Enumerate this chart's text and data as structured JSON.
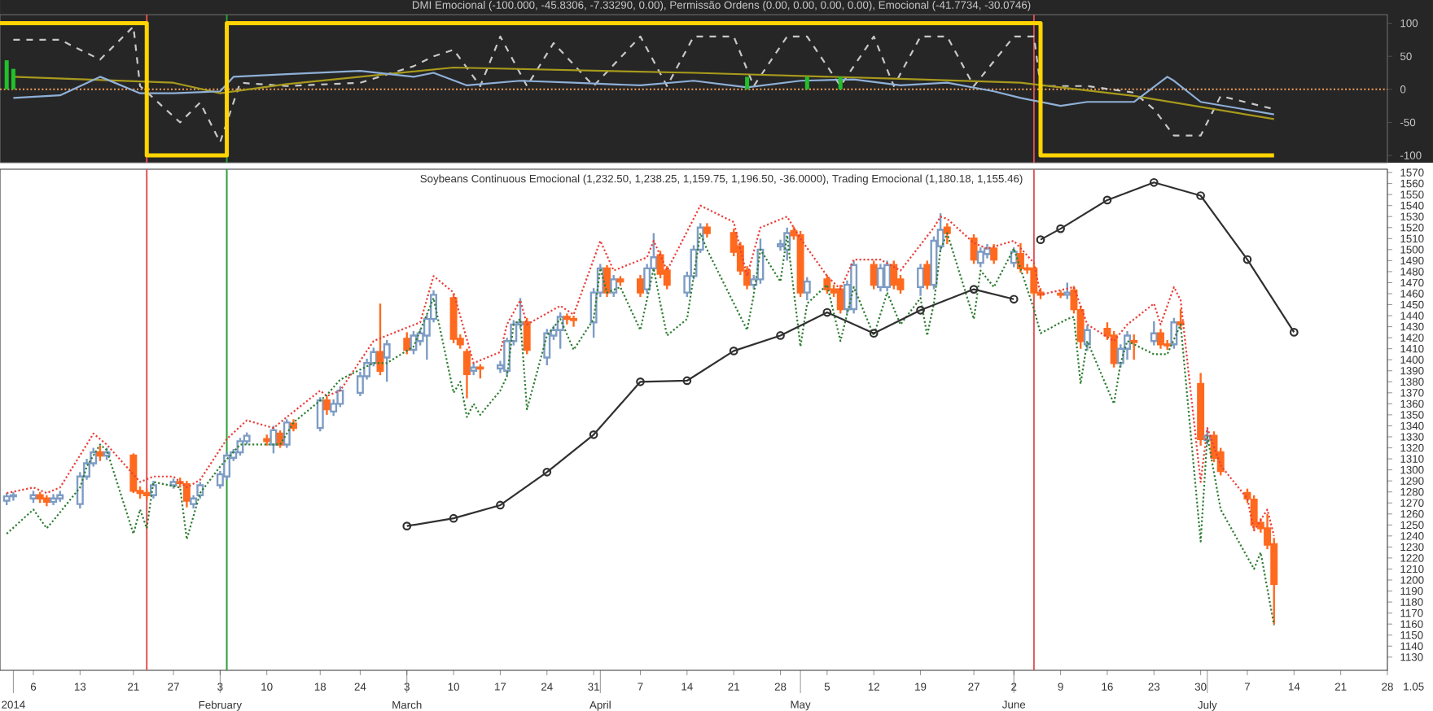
{
  "chart_data": [
    {
      "type": "line",
      "title": "DMI Emocional (-100.000, -45.8306, -7.33290, 0.00), Permissão Ordens (0.00, 0.00, 0.00, 0.00), Emocional (-41.7734, -30.0746)",
      "xlim": [
        "2014-01-01",
        "2014-07-28"
      ],
      "ylim": [
        -111,
        113
      ],
      "yticks": [
        -100,
        -50,
        0,
        50,
        100
      ],
      "tick_labels": "y",
      "series": [
        {
          "type": "line",
          "color": "#c8c8c8",
          "line_style": "dashed",
          "x": [
            "2014-01-03",
            "2014-01-10",
            "2014-01-16",
            "2014-01-21",
            "2014-01-22",
            "2014-01-28",
            "2014-01-31",
            "2014-02-03",
            "2014-02-06",
            "2014-02-13",
            "2014-02-24",
            "2014-03-04",
            "2014-03-07",
            "2014-03-10",
            "2014-03-14",
            "2014-03-17",
            "2014-03-21",
            "2014-03-25",
            "2014-03-31",
            "2014-04-07",
            "2014-04-11",
            "2014-04-15",
            "2014-04-21",
            "2014-04-24",
            "2014-04-29",
            "2014-05-02",
            "2014-05-07",
            "2014-05-12",
            "2014-05-15",
            "2014-05-19",
            "2014-05-23",
            "2014-05-27",
            "2014-06-02",
            "2014-06-05",
            "2014-06-06",
            "2014-06-13",
            "2014-06-20",
            "2014-06-23",
            "2014-06-26",
            "2014-06-30",
            "2014-07-03",
            "2014-07-11"
          ],
          "values": [
            75,
            75,
            45,
            95,
            5,
            -50,
            -20,
            -80,
            10,
            5,
            10,
            35,
            50,
            60,
            5,
            80,
            5,
            70,
            5,
            80,
            5,
            80,
            80,
            5,
            80,
            80,
            5,
            80,
            5,
            80,
            80,
            5,
            80,
            80,
            5,
            5,
            -5,
            -30,
            -70,
            -70,
            -10,
            -30
          ]
        },
        {
          "type": "line",
          "color": "#a89a1c",
          "x": [
            "2014-01-03",
            "2014-01-27",
            "2014-02-03",
            "2014-02-13",
            "2014-03-10",
            "2014-04-15",
            "2014-05-16",
            "2014-06-03",
            "2014-06-20",
            "2014-07-11"
          ],
          "values": [
            19,
            10,
            -6,
            8,
            33,
            25,
            16,
            10,
            -10,
            -45
          ]
        },
        {
          "type": "line",
          "color": "#8fb0d8",
          "x": [
            "2014-01-03",
            "2014-01-10",
            "2014-01-16",
            "2014-01-17",
            "2014-01-22",
            "2014-01-27",
            "2014-02-03",
            "2014-02-05",
            "2014-02-13",
            "2014-02-24",
            "2014-03-04",
            "2014-03-07",
            "2014-03-12",
            "2014-03-20",
            "2014-03-28",
            "2014-04-07",
            "2014-04-15",
            "2014-04-23",
            "2014-05-01",
            "2014-05-09",
            "2014-05-16",
            "2014-05-23",
            "2014-05-30",
            "2014-06-03",
            "2014-06-09",
            "2014-06-13",
            "2014-06-20",
            "2014-06-25",
            "2014-06-26",
            "2014-06-30",
            "2014-07-07",
            "2014-07-11"
          ],
          "values": [
            -13,
            -9,
            19,
            15,
            -6,
            -6,
            -3,
            19,
            23,
            28,
            19,
            25,
            6,
            13,
            10,
            6,
            13,
            3,
            13,
            15,
            6,
            10,
            -3,
            -13,
            -25,
            -19,
            -19,
            19,
            13,
            -19,
            -31,
            -38
          ]
        },
        {
          "type": "step",
          "color": "#ffd400",
          "x": [
            "2014-01-01",
            "2014-01-23",
            "2014-02-04",
            "2014-06-06",
            "2014-07-11"
          ],
          "values": [
            100,
            -100,
            100,
            -100,
            -100
          ]
        },
        {
          "type": "bar",
          "color": "#22c02a",
          "x": [
            "2014-01-02",
            "2014-01-03",
            "2014-04-23",
            "2014-05-02",
            "2014-05-07"
          ],
          "values": [
            44,
            31,
            19,
            19,
            19
          ]
        }
      ],
      "ref_lines": [
        {
          "axis": "y",
          "value": 0,
          "color": "#f5a05a",
          "line_style": "dotted"
        },
        {
          "axis": "x",
          "value": "2014-01-23",
          "color": "#e05050"
        },
        {
          "axis": "x",
          "value": "2014-02-04",
          "color": "#2e9e3e"
        },
        {
          "axis": "x",
          "value": "2014-06-05",
          "color": "#e05050"
        }
      ]
    },
    {
      "type": "candlestick",
      "title": "Soybeans Continuous Emocional (1,232.50, 1,238.25, 1,159.75, 1,196.50, -36.0000), Trading Emocional (1,180.18, 1,155.46)",
      "xlim": [
        "2014-01-01",
        "2014-07-28"
      ],
      "ylim": [
        1118,
        1573
      ],
      "yticks": [
        1130,
        1140,
        1150,
        1160,
        1170,
        1180,
        1190,
        1200,
        1210,
        1220,
        1230,
        1240,
        1250,
        1260,
        1270,
        1280,
        1290,
        1300,
        1310,
        1320,
        1330,
        1340,
        1350,
        1360,
        1370,
        1380,
        1390,
        1400,
        1410,
        1420,
        1430,
        1440,
        1450,
        1460,
        1470,
        1480,
        1490,
        1500,
        1510,
        1520,
        1530,
        1540,
        1550,
        1560,
        1570
      ],
      "xticks": [
        {
          "value": "2014-01-06",
          "label": "6"
        },
        {
          "value": "2014-01-13",
          "label": "13"
        },
        {
          "value": "2014-01-21",
          "label": "21"
        },
        {
          "value": "2014-01-27",
          "label": "27"
        },
        {
          "value": "2014-02-03",
          "label": "3"
        },
        {
          "value": "2014-02-10",
          "label": "10"
        },
        {
          "value": "2014-02-18",
          "label": "18"
        },
        {
          "value": "2014-02-24",
          "label": "24"
        },
        {
          "value": "2014-03-03",
          "label": "3"
        },
        {
          "value": "2014-03-10",
          "label": "10"
        },
        {
          "value": "2014-03-17",
          "label": "17"
        },
        {
          "value": "2014-03-24",
          "label": "24"
        },
        {
          "value": "2014-03-31",
          "label": "31"
        },
        {
          "value": "2014-04-07",
          "label": "7"
        },
        {
          "value": "2014-04-14",
          "label": "14"
        },
        {
          "value": "2014-04-21",
          "label": "21"
        },
        {
          "value": "2014-04-28",
          "label": "28"
        },
        {
          "value": "2014-05-05",
          "label": "5"
        },
        {
          "value": "2014-05-12",
          "label": "12"
        },
        {
          "value": "2014-05-19",
          "label": "19"
        },
        {
          "value": "2014-05-27",
          "label": "27"
        },
        {
          "value": "2014-06-02",
          "label": "2"
        },
        {
          "value": "2014-06-09",
          "label": "9"
        },
        {
          "value": "2014-06-16",
          "label": "16"
        },
        {
          "value": "2014-06-23",
          "label": "23"
        },
        {
          "value": "2014-06-30",
          "label": "30"
        },
        {
          "value": "2014-07-07",
          "label": "7"
        },
        {
          "value": "2014-07-14",
          "label": "14"
        },
        {
          "value": "2014-07-21",
          "label": "21"
        },
        {
          "value": "2014-07-28",
          "label": "28"
        }
      ],
      "x": [
        "2014-01-02",
        "2014-01-03",
        "2014-01-06",
        "2014-01-07",
        "2014-01-08",
        "2014-01-09",
        "2014-01-10",
        "2014-01-13",
        "2014-01-14",
        "2014-01-15",
        "2014-01-16",
        "2014-01-17",
        "2014-01-21",
        "2014-01-22",
        "2014-01-23",
        "2014-01-24",
        "2014-01-27",
        "2014-01-28",
        "2014-01-29",
        "2014-01-30",
        "2014-01-31",
        "2014-02-03",
        "2014-02-04",
        "2014-02-05",
        "2014-02-06",
        "2014-02-07",
        "2014-02-10",
        "2014-02-11",
        "2014-02-12",
        "2014-02-13",
        "2014-02-14",
        "2014-02-18",
        "2014-02-19",
        "2014-02-20",
        "2014-02-21",
        "2014-02-24",
        "2014-02-25",
        "2014-02-26",
        "2014-02-27",
        "2014-02-28",
        "2014-03-03",
        "2014-03-04",
        "2014-03-05",
        "2014-03-06",
        "2014-03-07",
        "2014-03-10",
        "2014-03-11",
        "2014-03-12",
        "2014-03-13",
        "2014-03-14",
        "2014-03-17",
        "2014-03-18",
        "2014-03-19",
        "2014-03-20",
        "2014-03-21",
        "2014-03-24",
        "2014-03-25",
        "2014-03-26",
        "2014-03-27",
        "2014-03-28",
        "2014-03-31",
        "2014-04-01",
        "2014-04-02",
        "2014-04-03",
        "2014-04-04",
        "2014-04-07",
        "2014-04-08",
        "2014-04-09",
        "2014-04-10",
        "2014-04-11",
        "2014-04-14",
        "2014-04-15",
        "2014-04-16",
        "2014-04-17",
        "2014-04-21",
        "2014-04-22",
        "2014-04-23",
        "2014-04-24",
        "2014-04-25",
        "2014-04-28",
        "2014-04-29",
        "2014-04-30",
        "2014-05-01",
        "2014-05-02",
        "2014-05-05",
        "2014-05-06",
        "2014-05-07",
        "2014-05-08",
        "2014-05-09",
        "2014-05-12",
        "2014-05-13",
        "2014-05-14",
        "2014-05-15",
        "2014-05-16",
        "2014-05-19",
        "2014-05-20",
        "2014-05-21",
        "2014-05-22",
        "2014-05-23",
        "2014-05-27",
        "2014-05-28",
        "2014-05-29",
        "2014-05-30",
        "2014-06-02",
        "2014-06-03",
        "2014-06-04",
        "2014-06-05",
        "2014-06-06",
        "2014-06-09",
        "2014-06-10",
        "2014-06-11",
        "2014-06-12",
        "2014-06-13",
        "2014-06-16",
        "2014-06-17",
        "2014-06-18",
        "2014-06-19",
        "2014-06-20",
        "2014-06-23",
        "2014-06-24",
        "2014-06-25",
        "2014-06-26",
        "2014-06-27",
        "2014-06-30",
        "2014-07-01",
        "2014-07-02",
        "2014-07-03",
        "2014-07-07",
        "2014-07-08",
        "2014-07-09",
        "2014-07-10",
        "2014-07-11"
      ],
      "ohlc": [
        [
          1272,
          1279,
          1268,
          1276
        ],
        [
          1276,
          1280,
          1272,
          1277
        ],
        [
          1274,
          1281,
          1270,
          1277
        ],
        [
          1277,
          1280,
          1270,
          1274
        ],
        [
          1274,
          1277,
          1267,
          1271
        ],
        [
          1271,
          1278,
          1268,
          1274
        ],
        [
          1274,
          1281,
          1271,
          1277
        ],
        [
          1269,
          1298,
          1265,
          1294
        ],
        [
          1294,
          1310,
          1291,
          1306
        ],
        [
          1306,
          1320,
          1303,
          1316
        ],
        [
          1316,
          1322,
          1308,
          1313
        ],
        [
          1313,
          1320,
          1309,
          1316
        ],
        [
          1313,
          1315,
          1279,
          1281
        ],
        [
          1281,
          1285,
          1274,
          1279
        ],
        [
          1279,
          1283,
          1273,
          1277
        ],
        [
          1277,
          1290,
          1274,
          1286
        ],
        [
          1286,
          1292,
          1283,
          1289
        ],
        [
          1289,
          1293,
          1284,
          1288
        ],
        [
          1287,
          1290,
          1266,
          1272
        ],
        [
          1269,
          1277,
          1265,
          1274
        ],
        [
          1277,
          1289,
          1274,
          1286
        ],
        [
          1286,
          1299,
          1283,
          1296
        ],
        [
          1294,
          1316,
          1291,
          1313
        ],
        [
          1311,
          1319,
          1308,
          1316
        ],
        [
          1316,
          1329,
          1313,
          1326
        ],
        [
          1326,
          1334,
          1323,
          1331
        ],
        [
          1328,
          1332,
          1322,
          1326
        ],
        [
          1323,
          1340,
          1315,
          1336
        ],
        [
          1333,
          1336,
          1320,
          1323
        ],
        [
          1323,
          1346,
          1320,
          1343
        ],
        [
          1342,
          1346,
          1335,
          1338
        ],
        [
          1338,
          1366,
          1335,
          1363
        ],
        [
          1363,
          1367,
          1350,
          1355
        ],
        [
          1353,
          1364,
          1349,
          1360
        ],
        [
          1360,
          1376,
          1357,
          1372
        ],
        [
          1370,
          1389,
          1367,
          1385
        ],
        [
          1385,
          1401,
          1382,
          1397
        ],
        [
          1397,
          1411,
          1394,
          1407
        ],
        [
          1407,
          1451,
          1386,
          1390
        ],
        [
          1402,
          1418,
          1380,
          1414
        ],
        [
          1419,
          1425,
          1405,
          1409
        ],
        [
          1409,
          1426,
          1405,
          1422
        ],
        [
          1417,
          1428,
          1413,
          1424
        ],
        [
          1422,
          1441,
          1400,
          1437
        ],
        [
          1437,
          1463,
          1434,
          1459
        ],
        [
          1456,
          1460,
          1415,
          1419
        ],
        [
          1419,
          1423,
          1410,
          1414
        ],
        [
          1407,
          1410,
          1365,
          1387
        ],
        [
          1390,
          1397,
          1386,
          1393
        ],
        [
          1393,
          1396,
          1383,
          1392
        ],
        [
          1392,
          1399,
          1388,
          1395
        ],
        [
          1390,
          1420,
          1386,
          1417
        ],
        [
          1417,
          1436,
          1413,
          1432
        ],
        [
          1432,
          1456,
          1428,
          1434
        ],
        [
          1434,
          1438,
          1405,
          1409
        ],
        [
          1402,
          1428,
          1395,
          1424
        ],
        [
          1422,
          1431,
          1418,
          1427
        ],
        [
          1427,
          1443,
          1410,
          1439
        ],
        [
          1439,
          1442,
          1432,
          1437
        ],
        [
          1437,
          1440,
          1430,
          1436
        ],
        [
          1434,
          1465,
          1420,
          1461
        ],
        [
          1461,
          1487,
          1457,
          1483
        ],
        [
          1483,
          1486,
          1457,
          1461
        ],
        [
          1461,
          1477,
          1457,
          1473
        ],
        [
          1473,
          1476,
          1467,
          1471
        ],
        [
          1473,
          1477,
          1457,
          1461
        ],
        [
          1464,
          1487,
          1460,
          1483
        ],
        [
          1483,
          1515,
          1480,
          1493
        ],
        [
          1495,
          1499,
          1474,
          1478
        ],
        [
          1481,
          1485,
          1464,
          1468
        ],
        [
          1461,
          1480,
          1457,
          1476
        ],
        [
          1476,
          1504,
          1473,
          1500
        ],
        [
          1500,
          1524,
          1497,
          1520
        ],
        [
          1520,
          1524,
          1511,
          1515
        ],
        [
          1515,
          1519,
          1494,
          1498
        ],
        [
          1503,
          1507,
          1477,
          1481
        ],
        [
          1481,
          1485,
          1464,
          1468
        ],
        [
          1468,
          1477,
          1464,
          1473
        ],
        [
          1473,
          1510,
          1469,
          1500
        ],
        [
          1503,
          1509,
          1499,
          1505
        ],
        [
          1500,
          1520,
          1490,
          1515
        ],
        [
          1517,
          1521,
          1509,
          1513
        ],
        [
          1513,
          1517,
          1457,
          1461
        ],
        [
          1461,
          1475,
          1454,
          1471
        ],
        [
          1473,
          1477,
          1460,
          1464
        ],
        [
          1464,
          1468,
          1457,
          1461
        ],
        [
          1464,
          1468,
          1442,
          1446
        ],
        [
          1446,
          1472,
          1442,
          1468
        ],
        [
          1446,
          1490,
          1442,
          1486
        ],
        [
          1486,
          1490,
          1464,
          1468
        ],
        [
          1466,
          1487,
          1462,
          1483
        ],
        [
          1466,
          1490,
          1462,
          1486
        ],
        [
          1486,
          1490,
          1464,
          1468
        ],
        [
          1473,
          1477,
          1460,
          1464
        ],
        [
          1466,
          1487,
          1458,
          1483
        ],
        [
          1486,
          1490,
          1464,
          1468
        ],
        [
          1468,
          1512,
          1464,
          1508
        ],
        [
          1503,
          1533,
          1499,
          1518
        ],
        [
          1520,
          1524,
          1505,
          1515
        ],
        [
          1510,
          1514,
          1487,
          1491
        ],
        [
          1488,
          1502,
          1484,
          1498
        ],
        [
          1496,
          1505,
          1492,
          1501
        ],
        [
          1501,
          1505,
          1487,
          1491
        ],
        [
          1488,
          1502,
          1484,
          1498
        ],
        [
          1496,
          1506,
          1479,
          1483
        ],
        [
          1483,
          1487,
          1478,
          1482
        ],
        [
          1483,
          1487,
          1457,
          1461
        ],
        [
          1461,
          1465,
          1455,
          1459
        ],
        [
          1460,
          1463,
          1456,
          1459
        ],
        [
          1459,
          1470,
          1455,
          1461
        ],
        [
          1463,
          1467,
          1442,
          1446
        ],
        [
          1445,
          1449,
          1410,
          1417
        ],
        [
          1414,
          1431,
          1408,
          1427
        ],
        [
          1428,
          1434,
          1418,
          1422
        ],
        [
          1422,
          1426,
          1393,
          1397
        ],
        [
          1397,
          1414,
          1393,
          1410
        ],
        [
          1410,
          1426,
          1400,
          1422
        ],
        [
          1417,
          1423,
          1400,
          1416
        ],
        [
          1417,
          1435,
          1413,
          1424
        ],
        [
          1424,
          1428,
          1410,
          1414
        ],
        [
          1414,
          1418,
          1409,
          1413
        ],
        [
          1414,
          1438,
          1410,
          1434
        ],
        [
          1434,
          1446,
          1428,
          1432
        ],
        [
          1378,
          1388,
          1322,
          1328
        ],
        [
          1327,
          1337,
          1323,
          1331
        ],
        [
          1331,
          1335,
          1307,
          1311
        ],
        [
          1316,
          1320,
          1295,
          1299
        ],
        [
          1279,
          1283,
          1270,
          1274
        ],
        [
          1273,
          1277,
          1246,
          1250
        ],
        [
          1252,
          1256,
          1243,
          1247
        ],
        [
          1247,
          1260,
          1228,
          1232
        ],
        [
          1232.5,
          1238.25,
          1159.75,
          1196.5
        ]
      ],
      "series": [
        {
          "type": "line",
          "color": "#e8403a",
          "line_style": "dotted",
          "x": [
            "2014-01-02",
            "2014-01-06",
            "2014-01-08",
            "2014-01-10",
            "2014-01-14",
            "2014-01-15",
            "2014-01-17",
            "2014-01-22",
            "2014-01-24",
            "2014-01-27",
            "2014-01-29",
            "2014-01-31",
            "2014-02-04",
            "2014-02-07",
            "2014-02-11",
            "2014-02-13",
            "2014-02-18",
            "2014-02-19",
            "2014-02-21",
            "2014-02-26",
            "2014-02-28",
            "2014-03-05",
            "2014-03-07",
            "2014-03-10",
            "2014-03-13",
            "2014-03-17",
            "2014-03-18",
            "2014-03-20",
            "2014-03-21",
            "2014-03-26",
            "2014-03-28",
            "2014-04-01",
            "2014-04-03",
            "2014-04-08",
            "2014-04-09",
            "2014-04-11",
            "2014-04-16",
            "2014-04-21",
            "2014-04-23",
            "2014-04-25",
            "2014-04-29",
            "2014-05-01",
            "2014-05-05",
            "2014-05-07",
            "2014-05-09",
            "2014-05-13",
            "2014-05-16",
            "2014-05-21",
            "2014-05-22",
            "2014-05-23",
            "2014-05-27",
            "2014-05-29",
            "2014-06-02",
            "2014-06-05",
            "2014-06-06",
            "2014-06-11",
            "2014-06-13",
            "2014-06-17",
            "2014-06-19",
            "2014-06-23",
            "2014-06-24",
            "2014-06-26",
            "2014-06-27",
            "2014-06-30",
            "2014-07-01",
            "2014-07-03",
            "2014-07-07",
            "2014-07-08",
            "2014-07-10",
            "2014-07-11"
          ],
          "values": [
            1279,
            1284,
            1279,
            1284,
            1323,
            1333,
            1323,
            1289,
            1294,
            1294,
            1284,
            1291,
            1328,
            1345,
            1338,
            1348,
            1372,
            1367,
            1372,
            1417,
            1422,
            1434,
            1476,
            1461,
            1397,
            1407,
            1432,
            1454,
            1432,
            1449,
            1441,
            1508,
            1481,
            1493,
            1508,
            1481,
            1540,
            1525,
            1476,
            1520,
            1530,
            1510,
            1476,
            1464,
            1491,
            1491,
            1481,
            1520,
            1530,
            1528,
            1506,
            1501,
            1508,
            1488,
            1459,
            1466,
            1432,
            1417,
            1432,
            1451,
            1432,
            1466,
            1454,
            1289,
            1338,
            1304,
            1274,
            1245,
            1264,
            1240
          ]
        },
        {
          "type": "line",
          "color": "#2e7d32",
          "line_style": "dotted",
          "x": [
            "2014-01-02",
            "2014-01-06",
            "2014-01-08",
            "2014-01-09",
            "2014-01-13",
            "2014-01-14",
            "2014-01-16",
            "2014-01-17",
            "2014-01-21",
            "2014-01-22",
            "2014-01-23",
            "2014-01-24",
            "2014-01-28",
            "2014-01-29",
            "2014-01-31",
            "2014-02-03",
            "2014-02-06",
            "2014-02-10",
            "2014-02-12",
            "2014-02-14",
            "2014-02-19",
            "2014-02-21",
            "2014-02-26",
            "2014-02-28",
            "2014-03-04",
            "2014-03-07",
            "2014-03-10",
            "2014-03-11",
            "2014-03-12",
            "2014-03-13",
            "2014-03-14",
            "2014-03-17",
            "2014-03-18",
            "2014-03-19",
            "2014-03-20",
            "2014-03-21",
            "2014-03-24",
            "2014-03-26",
            "2014-03-28",
            "2014-03-31",
            "2014-04-01",
            "2014-04-02",
            "2014-04-04",
            "2014-04-07",
            "2014-04-09",
            "2014-04-10",
            "2014-04-11",
            "2014-04-14",
            "2014-04-16",
            "2014-04-17",
            "2014-04-23",
            "2014-04-24",
            "2014-04-25",
            "2014-04-28",
            "2014-04-29",
            "2014-05-01",
            "2014-05-02",
            "2014-05-05",
            "2014-05-07",
            "2014-05-09",
            "2014-05-12",
            "2014-05-14",
            "2014-05-16",
            "2014-05-19",
            "2014-05-20",
            "2014-05-21",
            "2014-05-22",
            "2014-05-23",
            "2014-05-27",
            "2014-05-28",
            "2014-05-30",
            "2014-06-02",
            "2014-06-05",
            "2014-06-06",
            "2014-06-10",
            "2014-06-11",
            "2014-06-12",
            "2014-06-13",
            "2014-06-17",
            "2014-06-18",
            "2014-06-19",
            "2014-06-23",
            "2014-06-25",
            "2014-06-27",
            "2014-06-30",
            "2014-07-01",
            "2014-07-03",
            "2014-07-08",
            "2014-07-09",
            "2014-07-11"
          ],
          "values": [
            1242,
            1264,
            1247,
            1254,
            1284,
            1303,
            1323,
            1318,
            1242,
            1264,
            1247,
            1289,
            1284,
            1237,
            1279,
            1303,
            1323,
            1323,
            1323,
            1343,
            1368,
            1382,
            1397,
            1397,
            1412,
            1456,
            1370,
            1380,
            1348,
            1360,
            1350,
            1372,
            1385,
            1432,
            1437,
            1355,
            1422,
            1437,
            1409,
            1437,
            1483,
            1461,
            1466,
            1427,
            1483,
            1451,
            1422,
            1437,
            1515,
            1500,
            1427,
            1459,
            1500,
            1471,
            1513,
            1412,
            1451,
            1468,
            1417,
            1466,
            1422,
            1461,
            1432,
            1456,
            1422,
            1451,
            1500,
            1515,
            1437,
            1481,
            1466,
            1501,
            1446,
            1424,
            1437,
            1439,
            1378,
            1417,
            1360,
            1397,
            1417,
            1405,
            1405,
            1432,
            1235,
            1331,
            1264,
            1210,
            1225,
            1159
          ]
        },
        {
          "type": "line",
          "color": "#303030",
          "marker": "circle",
          "x": [
            "2014-03-03",
            "2014-03-10",
            "2014-03-17",
            "2014-03-24",
            "2014-03-31",
            "2014-04-07",
            "2014-04-14",
            "2014-04-21",
            "2014-04-28",
            "2014-05-05",
            "2014-05-12",
            "2014-05-19",
            "2014-05-27",
            "2014-06-02",
            "2014-06-04",
            "2014-06-06",
            "2014-06-09",
            "2014-06-16",
            "2014-06-23",
            "2014-06-30",
            "2014-07-07",
            "2014-07-14"
          ],
          "values": [
            1249,
            1256,
            1268,
            1298,
            1332,
            1380,
            1381,
            1408,
            1422,
            1443,
            1424,
            1445,
            1464,
            1455,
            null,
            1509,
            1519,
            1545,
            1561,
            1549,
            1491,
            1425
          ]
        }
      ],
      "ref_lines": [
        {
          "axis": "x",
          "value": "2014-01-23",
          "color": "#e05050"
        },
        {
          "axis": "x",
          "value": "2014-02-04",
          "color": "#2e9e3e"
        },
        {
          "axis": "x",
          "value": "2014-06-05",
          "color": "#e05050"
        }
      ],
      "x2lim": [
        "2014-01-01",
        "2014-07-28"
      ],
      "x2ticks": [
        {
          "value": "2014-01-03",
          "label": "2014"
        },
        {
          "value": "2014-02-03",
          "label": "February"
        },
        {
          "value": "2014-03-03",
          "label": "March"
        },
        {
          "value": "2014-04-01",
          "label": "April"
        },
        {
          "value": "2014-05-01",
          "label": "May"
        },
        {
          "value": "2014-06-02",
          "label": "June"
        },
        {
          "value": "2014-07-01",
          "label": "July"
        }
      ],
      "annotations": [
        "1.05"
      ]
    }
  ]
}
